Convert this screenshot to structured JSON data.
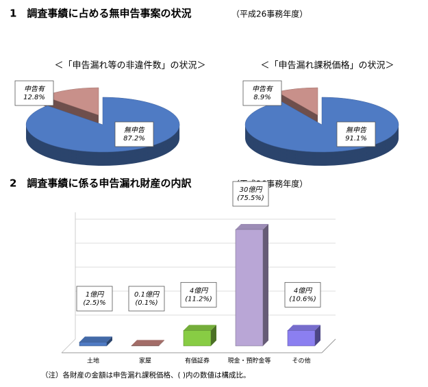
{
  "sections": [
    {
      "title": "1　調査事績に占める無申告事案の状況",
      "subtitle": "（平成26事務年度）"
    },
    {
      "title": "2　調査事績に係る申告漏れ財産の内訳",
      "subtitle": "（平成26事務年度）"
    }
  ],
  "chart_data": [
    {
      "type": "pie",
      "title": "＜「申告漏れ等の非違件数」の状況＞",
      "categories": [
        "申告有",
        "無申告"
      ],
      "values": [
        12.8,
        87.2
      ],
      "value_labels": [
        "12.8%",
        "87.2%"
      ],
      "colors": [
        "#c8908a",
        "#4f7bc4"
      ]
    },
    {
      "type": "pie",
      "title": "＜「申告漏れ課税価格」の状況＞",
      "categories": [
        "申告有",
        "無申告"
      ],
      "values": [
        8.9,
        91.1
      ],
      "value_labels": [
        "8.9%",
        "91.1%"
      ],
      "colors": [
        "#c8908a",
        "#4f7bc4"
      ]
    },
    {
      "type": "bar",
      "categories": [
        "土地",
        "家屋",
        "有価証券",
        "現金・預貯金等",
        "その他"
      ],
      "values": [
        1,
        0.1,
        4,
        30,
        4
      ],
      "value_labels": [
        "1億円",
        "0.1億円",
        "4億円",
        "30億円",
        "4億円"
      ],
      "shares": [
        2.5,
        0.1,
        11.2,
        75.5,
        10.6
      ],
      "share_labels": [
        "(2.5)%",
        "(0.1%)",
        "(11.2%)",
        "(75.5%)",
        "(10.6%)"
      ],
      "colors": [
        "#4f7bc4",
        "#c0807a",
        "#88cc44",
        "#b9a6d6",
        "#8b7ff0"
      ]
    }
  ],
  "note": "（注）各財産の金額は申告漏れ課税価格、( )内の数値は構成比。"
}
